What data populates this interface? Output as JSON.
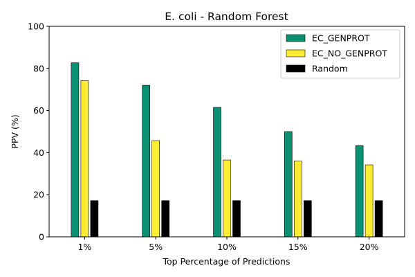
{
  "chart_data": {
    "type": "bar",
    "title": "E. coli - Random Forest",
    "xlabel": "Top Percentage of Predictions",
    "ylabel": "PPV (%)",
    "ylim": [
      0,
      100
    ],
    "yticks": [
      0,
      20,
      40,
      60,
      80,
      100
    ],
    "categories": [
      "1%",
      "5%",
      "10%",
      "15%",
      "20%"
    ],
    "series": [
      {
        "name": "EC_GENPROT",
        "color": "#0a9171",
        "values": [
          82.7,
          72.0,
          61.5,
          50.0,
          43.3
        ]
      },
      {
        "name": "EC_NO_GENPROT",
        "color": "#fcec34",
        "values": [
          74.2,
          45.7,
          36.5,
          36.1,
          34.2
        ]
      },
      {
        "name": "Random",
        "color": "#000000",
        "values": [
          17.2,
          17.2,
          17.2,
          17.2,
          17.2
        ]
      }
    ],
    "legend_position": "top-right",
    "grid": false
  }
}
